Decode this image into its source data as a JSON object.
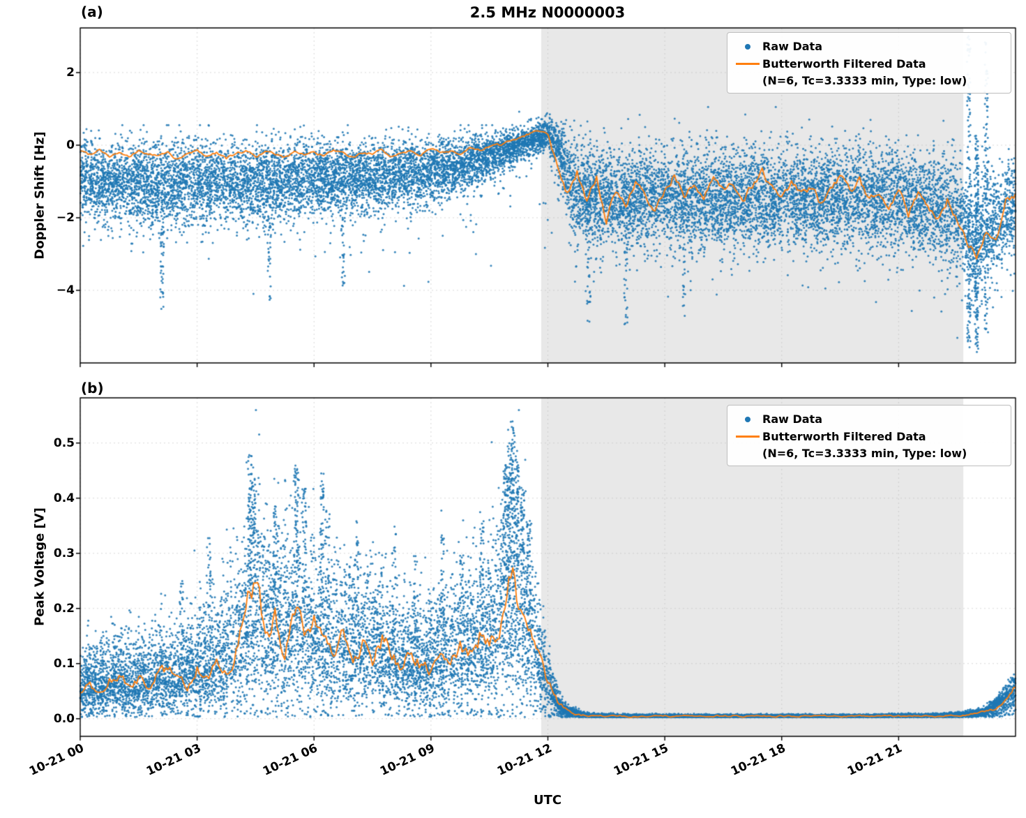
{
  "figure": {
    "title": "2.5 MHz N0000003",
    "panel_a_tag": "(a)",
    "panel_b_tag": "(b)",
    "xlabel": "UTC",
    "legend": {
      "raw_label": "Raw Data",
      "filtered_label": "Butterworth Filtered Data",
      "filtered_sublabel": "(N=6, Tc=3.3333 min, Type: low)"
    },
    "colors": {
      "raw": "#1f77b4",
      "filtered": "#ff7f0e",
      "shade": "#e8e8e8",
      "grid": "#b9b9b9",
      "spine": "#000000"
    }
  },
  "chart_data": [
    {
      "type": "scatter",
      "panel": "(a)",
      "title": "2.5 MHz N0000003",
      "xlabel": "UTC",
      "ylabel": "Doppler Shift [Hz]",
      "xlim_hours": [
        0,
        24
      ],
      "ylim": [
        -6.0,
        3.23
      ],
      "yticks": [
        2,
        0,
        -2,
        -4
      ],
      "ytick_labels": [
        "2",
        "0",
        "−2",
        "−4"
      ],
      "xtick_hours": [
        0,
        3,
        6,
        9,
        12,
        15,
        18,
        21
      ],
      "xtick_labels": [
        "10-21 00",
        "10-21 03",
        "10-21 06",
        "10-21 09",
        "10-21 12",
        "10-21 15",
        "10-21 18",
        "10-21 21"
      ],
      "shaded_region_hours": [
        11.83,
        22.66
      ],
      "grid": true,
      "legend_position": "upper right",
      "series": [
        {
          "name": "Raw Data",
          "style": "scatter",
          "color": "#1f77b4",
          "n_points": 16000,
          "outlier_fraction": 0.022,
          "envelope": {
            "hours": [
              0,
              1,
              2,
              3,
              4,
              5,
              6,
              7,
              8,
              9,
              10,
              10.5,
              11,
              11.5,
              12,
              12.3,
              12.6,
              13,
              14,
              15,
              16,
              17,
              18,
              19,
              20,
              21,
              22,
              22.5,
              23,
              23.3,
              23.6,
              24
            ],
            "center": [
              -0.9,
              -1.0,
              -1.1,
              -1.0,
              -1.1,
              -1.0,
              -0.9,
              -0.9,
              -0.8,
              -0.7,
              -0.5,
              -0.3,
              -0.1,
              0.1,
              0.3,
              -0.2,
              -1.2,
              -1.4,
              -1.5,
              -1.4,
              -1.5,
              -1.4,
              -1.5,
              -1.5,
              -1.4,
              -1.5,
              -1.7,
              -1.9,
              -2.8,
              -2.4,
              -2.0,
              -1.5
            ],
            "sigma": [
              0.85,
              0.9,
              0.95,
              0.9,
              0.9,
              0.85,
              0.8,
              0.8,
              0.75,
              0.7,
              0.6,
              0.5,
              0.4,
              0.35,
              0.35,
              0.7,
              1.0,
              1.1,
              1.1,
              1.1,
              1.1,
              1.1,
              1.1,
              1.1,
              1.1,
              1.1,
              1.15,
              1.25,
              1.4,
              1.3,
              1.1,
              1.0
            ]
          },
          "streaks": [
            {
              "hour": 2.1,
              "min": -4.65,
              "max": -1.5,
              "n": 45
            },
            {
              "hour": 4.85,
              "min": -4.3,
              "max": -1.5,
              "n": 35
            },
            {
              "hour": 6.75,
              "min": -3.9,
              "max": -1.2,
              "n": 30
            },
            {
              "hour": 13.05,
              "min": -4.9,
              "max": 0.8,
              "n": 60
            },
            {
              "hour": 14.0,
              "min": -5.0,
              "max": -1.0,
              "n": 40
            },
            {
              "hour": 15.5,
              "min": -4.8,
              "max": -1.0,
              "n": 35
            },
            {
              "hour": 22.8,
              "min": -5.6,
              "max": 3.0,
              "n": 130
            },
            {
              "hour": 23.0,
              "min": -5.7,
              "max": 0.3,
              "n": 150
            },
            {
              "hour": 23.25,
              "min": -5.3,
              "max": 2.9,
              "n": 100
            }
          ]
        },
        {
          "name": "Butterworth Filtered Data (N=6, Tc=3.3333 min, Type: low)",
          "style": "line",
          "color": "#ff7f0e",
          "x_start_hours": 0,
          "x_step_hours": 0.25,
          "values": [
            -0.15,
            -0.25,
            -0.1,
            -0.3,
            -0.2,
            -0.35,
            -0.15,
            -0.25,
            -0.3,
            -0.2,
            -0.4,
            -0.25,
            -0.15,
            -0.3,
            -0.2,
            -0.35,
            -0.25,
            -0.15,
            -0.3,
            -0.2,
            -0.25,
            -0.35,
            -0.15,
            -0.25,
            -0.2,
            -0.3,
            -0.15,
            -0.25,
            -0.35,
            -0.2,
            -0.25,
            -0.15,
            -0.3,
            -0.2,
            -0.15,
            -0.25,
            -0.1,
            -0.2,
            -0.15,
            -0.25,
            -0.1,
            -0.15,
            -0.05,
            0.0,
            0.1,
            0.22,
            0.32,
            0.42,
            0.3,
            -0.5,
            -1.3,
            -0.7,
            -1.6,
            -0.9,
            -2.1,
            -1.2,
            -1.7,
            -1.0,
            -1.5,
            -1.9,
            -1.2,
            -0.8,
            -1.4,
            -1.1,
            -1.6,
            -0.9,
            -1.3,
            -1.0,
            -1.5,
            -1.1,
            -0.7,
            -1.2,
            -1.5,
            -1.0,
            -1.4,
            -1.2,
            -1.6,
            -1.1,
            -0.9,
            -1.3,
            -1.0,
            -1.5,
            -1.2,
            -1.7,
            -1.1,
            -1.9,
            -1.3,
            -1.6,
            -2.1,
            -1.5,
            -2.0,
            -2.6,
            -3.1,
            -2.3,
            -2.7,
            -1.6,
            -1.4
          ]
        }
      ]
    },
    {
      "type": "scatter",
      "panel": "(b)",
      "xlabel": "UTC",
      "ylabel": "Peak Voltage [V]",
      "xlim_hours": [
        0,
        24
      ],
      "ylim": [
        -0.032,
        0.582
      ],
      "yticks": [
        0.5,
        0.4,
        0.3,
        0.2,
        0.1,
        0.0
      ],
      "ytick_labels": [
        "0.5",
        "0.4",
        "0.3",
        "0.2",
        "0.1",
        "0.0"
      ],
      "xtick_hours": [
        0,
        3,
        6,
        9,
        12,
        15,
        18,
        21
      ],
      "xtick_labels": [
        "10-21 00",
        "10-21 03",
        "10-21 06",
        "10-21 09",
        "10-21 12",
        "10-21 15",
        "10-21 18",
        "10-21 21"
      ],
      "shaded_region_hours": [
        11.83,
        22.66
      ],
      "grid": true,
      "legend_position": "upper right",
      "series": [
        {
          "name": "Raw Data",
          "style": "scatter",
          "color": "#1f77b4",
          "n_points": 16000,
          "envelope": {
            "hours": [
              0,
              0.5,
              1,
              1.5,
              2,
              2.5,
              3,
              3.5,
              4,
              4.5,
              5,
              5.5,
              6,
              6.5,
              7,
              7.5,
              8,
              8.5,
              9,
              9.5,
              10,
              10.5,
              11,
              11.25,
              11.5,
              11.75,
              12,
              12.25,
              12.5,
              13,
              14,
              16,
              18,
              20,
              22,
              22.7,
              23.2,
              23.6,
              24
            ],
            "center": [
              0.05,
              0.06,
              0.07,
              0.06,
              0.08,
              0.07,
              0.09,
              0.1,
              0.13,
              0.19,
              0.16,
              0.17,
              0.16,
              0.13,
              0.12,
              0.13,
              0.11,
              0.1,
              0.1,
              0.12,
              0.13,
              0.15,
              0.22,
              0.2,
              0.16,
              0.11,
              0.06,
              0.025,
              0.012,
              0.006,
              0.005,
              0.005,
              0.005,
              0.005,
              0.006,
              0.008,
              0.012,
              0.03,
              0.06
            ],
            "spread_up": [
              0.09,
              0.1,
              0.11,
              0.1,
              0.11,
              0.11,
              0.13,
              0.16,
              0.22,
              0.24,
              0.22,
              0.24,
              0.22,
              0.19,
              0.17,
              0.19,
              0.15,
              0.14,
              0.15,
              0.17,
              0.17,
              0.19,
              0.27,
              0.25,
              0.2,
              0.13,
              0.07,
              0.03,
              0.012,
              0.005,
              0.003,
              0.003,
              0.003,
              0.003,
              0.004,
              0.005,
              0.008,
              0.018,
              0.025
            ]
          },
          "spikes": [
            {
              "hour": 2.6,
              "max": 0.25,
              "n": 25
            },
            {
              "hour": 3.3,
              "max": 0.33,
              "n": 30
            },
            {
              "hour": 4.35,
              "max": 0.48,
              "n": 70
            },
            {
              "hour": 4.45,
              "max": 0.44,
              "n": 50
            },
            {
              "hour": 5.0,
              "max": 0.4,
              "n": 40
            },
            {
              "hour": 5.55,
              "max": 0.46,
              "n": 60
            },
            {
              "hour": 5.75,
              "max": 0.42,
              "n": 40
            },
            {
              "hour": 6.2,
              "max": 0.45,
              "n": 50
            },
            {
              "hour": 6.35,
              "max": 0.38,
              "n": 35
            },
            {
              "hour": 7.1,
              "max": 0.36,
              "n": 30
            },
            {
              "hour": 8.05,
              "max": 0.36,
              "n": 30
            },
            {
              "hour": 8.6,
              "max": 0.3,
              "n": 25
            },
            {
              "hour": 9.3,
              "max": 0.34,
              "n": 30
            },
            {
              "hour": 9.8,
              "max": 0.3,
              "n": 25
            },
            {
              "hour": 10.3,
              "max": 0.36,
              "n": 40
            },
            {
              "hour": 10.9,
              "max": 0.46,
              "n": 60
            },
            {
              "hour": 11.0,
              "max": 0.5,
              "n": 70
            },
            {
              "hour": 11.1,
              "max": 0.54,
              "n": 80
            },
            {
              "hour": 11.2,
              "max": 0.47,
              "n": 60
            },
            {
              "hour": 11.35,
              "max": 0.42,
              "n": 50
            },
            {
              "hour": 11.5,
              "max": 0.36,
              "n": 40
            }
          ]
        },
        {
          "name": "Butterworth Filtered Data (N=6, Tc=3.3333 min, Type: low)",
          "style": "line",
          "color": "#ff7f0e",
          "x_start_hours": 0,
          "x_step_hours": 0.25,
          "values": [
            0.05,
            0.062,
            0.048,
            0.07,
            0.08,
            0.058,
            0.072,
            0.052,
            0.082,
            0.092,
            0.068,
            0.058,
            0.09,
            0.07,
            0.1,
            0.078,
            0.12,
            0.215,
            0.26,
            0.14,
            0.19,
            0.118,
            0.21,
            0.148,
            0.18,
            0.128,
            0.108,
            0.16,
            0.1,
            0.14,
            0.108,
            0.15,
            0.12,
            0.09,
            0.13,
            0.1,
            0.082,
            0.13,
            0.1,
            0.14,
            0.118,
            0.15,
            0.128,
            0.17,
            0.29,
            0.21,
            0.17,
            0.118,
            0.07,
            0.03,
            0.015,
            0.008,
            0.006,
            0.005,
            0.0045,
            0.005,
            0.0048,
            0.0042,
            0.005,
            0.0046,
            0.005,
            0.0044,
            0.005,
            0.0047,
            0.0043,
            0.005,
            0.0046,
            0.005,
            0.0044,
            0.005,
            0.0047,
            0.0043,
            0.005,
            0.0045,
            0.005,
            0.0048,
            0.0044,
            0.005,
            0.0046,
            0.0043,
            0.005,
            0.0047,
            0.005,
            0.0044,
            0.005,
            0.0046,
            0.005,
            0.0048,
            0.005,
            0.0052,
            0.006,
            0.007,
            0.01,
            0.013,
            0.02,
            0.04,
            0.065
          ]
        }
      ]
    }
  ]
}
